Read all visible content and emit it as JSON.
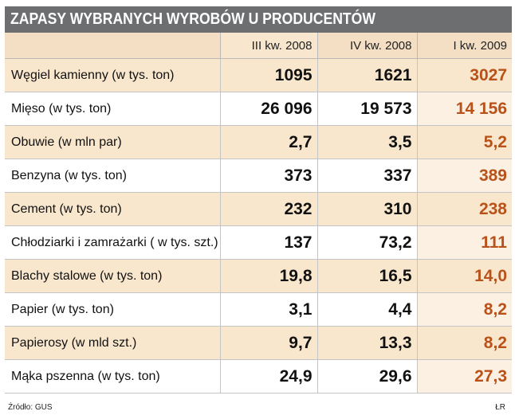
{
  "title": "ZAPASY WYBRANYCH WYROBÓW U PRODUCENTÓW",
  "source": "Źródło: GUS",
  "credit": "ŁR",
  "colors": {
    "header": "#6d6e70",
    "band": "#f9e7cd",
    "highlight": "#b8521a"
  },
  "chart_data": {
    "type": "table",
    "title": "ZAPASY WYBRANYCH WYROBÓW U PRODUCENTÓW",
    "columns": [
      "III kw. 2008",
      "IV kw. 2008",
      "I kw. 2009"
    ],
    "rows": [
      {
        "label": "Węgiel kamienny (w tys. ton)",
        "values": [
          "1095",
          "1621",
          "3027"
        ]
      },
      {
        "label": "Mięso (w tys. ton)",
        "values": [
          "26 096",
          "19 573",
          "14 156"
        ]
      },
      {
        "label": "Obuwie (w mln par)",
        "values": [
          "2,7",
          "3,5",
          "5,2"
        ]
      },
      {
        "label": "Benzyna (w tys. ton)",
        "values": [
          "373",
          "337",
          "389"
        ]
      },
      {
        "label": "Cement (w tys. ton)",
        "values": [
          "232",
          "310",
          "238"
        ]
      },
      {
        "label": "Chłodziarki i zamrażarki ( w tys. szt.)",
        "values": [
          "137",
          "73,2",
          "111"
        ]
      },
      {
        "label": "Blachy stalowe (w tys. ton)",
        "values": [
          "19,8",
          "16,5",
          "14,0"
        ]
      },
      {
        "label": "Papier (w tys. ton)",
        "values": [
          "3,1",
          "4,4",
          "8,2"
        ]
      },
      {
        "label": "Papierosy (w mld szt.)",
        "values": [
          "9,7",
          "13,3",
          "8,2"
        ]
      },
      {
        "label": "Mąka pszenna (w tys. ton)",
        "values": [
          "24,9",
          "29,6",
          "27,3"
        ]
      }
    ]
  }
}
